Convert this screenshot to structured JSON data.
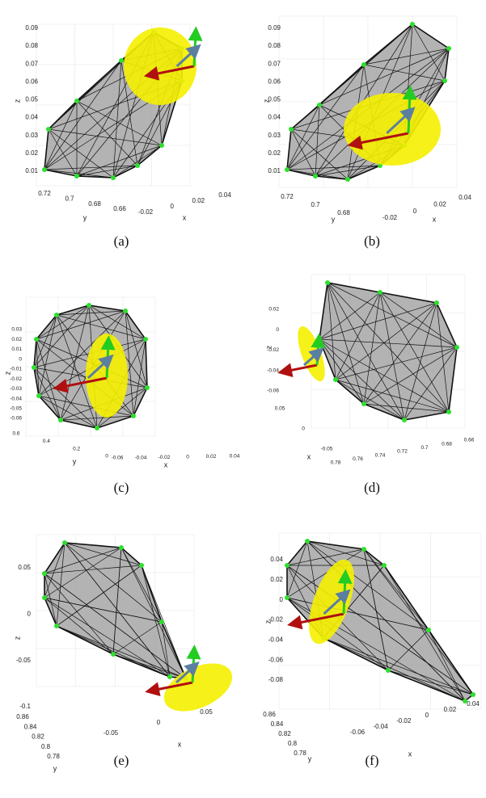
{
  "panels": [
    {
      "caption": "(a)",
      "z_label": "z",
      "y_label": "y",
      "x_label": "x",
      "z_ticks": [
        "0.09",
        "0.08",
        "0.07",
        "0.06",
        "0.05",
        "0.04",
        "0.03",
        "0.02",
        "0.01"
      ],
      "y_ticks": [
        "0.72",
        "0.7",
        "0.68",
        "0.66"
      ],
      "x_ticks": [
        "-0.02",
        "0",
        "0.02",
        "0.04"
      ]
    },
    {
      "caption": "(b)",
      "z_label": "z",
      "y_label": "y",
      "x_label": "x",
      "z_ticks": [
        "0.09",
        "0.08",
        "0.07",
        "0.06",
        "0.05",
        "0.04",
        "0.03",
        "0.02",
        "0.01"
      ],
      "y_ticks": [
        "0.72",
        "0.7",
        "0.68"
      ],
      "x_ticks": [
        "-0.02",
        "0",
        "0.02",
        "0.04"
      ]
    },
    {
      "caption": "(c)",
      "z_label": "z",
      "y_label": "y",
      "x_label": "x",
      "z_ticks": [
        "0.03",
        "0.02",
        "0.01",
        "0",
        "-0.01",
        "-0.02",
        "-0.03",
        "-0.04",
        "-0.05",
        "-0.06"
      ],
      "y_ticks": [
        "0.6",
        "0.4",
        "0.2",
        "0"
      ],
      "x_ticks": [
        "-0.06",
        "-0.04",
        "-0.02",
        "0",
        "0.02",
        "0.04"
      ]
    },
    {
      "caption": "(d)",
      "z_label": "z",
      "x_label": "x",
      "z_ticks": [
        "0.02",
        "0",
        "-0.02",
        "-0.04",
        "-0.06"
      ],
      "x_ticks": [
        "0.05",
        "0",
        "-0.05"
      ],
      "y_ticks": [
        "0.78",
        "0.76",
        "0.74",
        "0.72",
        "0.7",
        "0.68",
        "0.66"
      ]
    },
    {
      "caption": "(e)",
      "z_label": "z",
      "y_label": "y",
      "x_label": "x",
      "z_ticks": [
        "0.05",
        "0",
        "-0.05",
        "-0.1"
      ],
      "y_ticks": [
        "0.86",
        "0.84",
        "0.82",
        "0.8",
        "0.78"
      ],
      "x_ticks": [
        "-0.05",
        "0",
        "0.05"
      ]
    },
    {
      "caption": "(f)",
      "z_label": "z",
      "y_label": "y",
      "x_label": "x",
      "z_ticks": [
        "0.04",
        "0.02",
        "0",
        "-0.02",
        "-0.04",
        "-0.06",
        "-0.08"
      ],
      "y_ticks": [
        "0.86",
        "0.84",
        "0.82",
        "0.8",
        "0.78"
      ],
      "x_ticks": [
        "-0.06",
        "-0.04",
        "-0.02",
        "0",
        "0.02",
        "0.04"
      ]
    }
  ]
}
